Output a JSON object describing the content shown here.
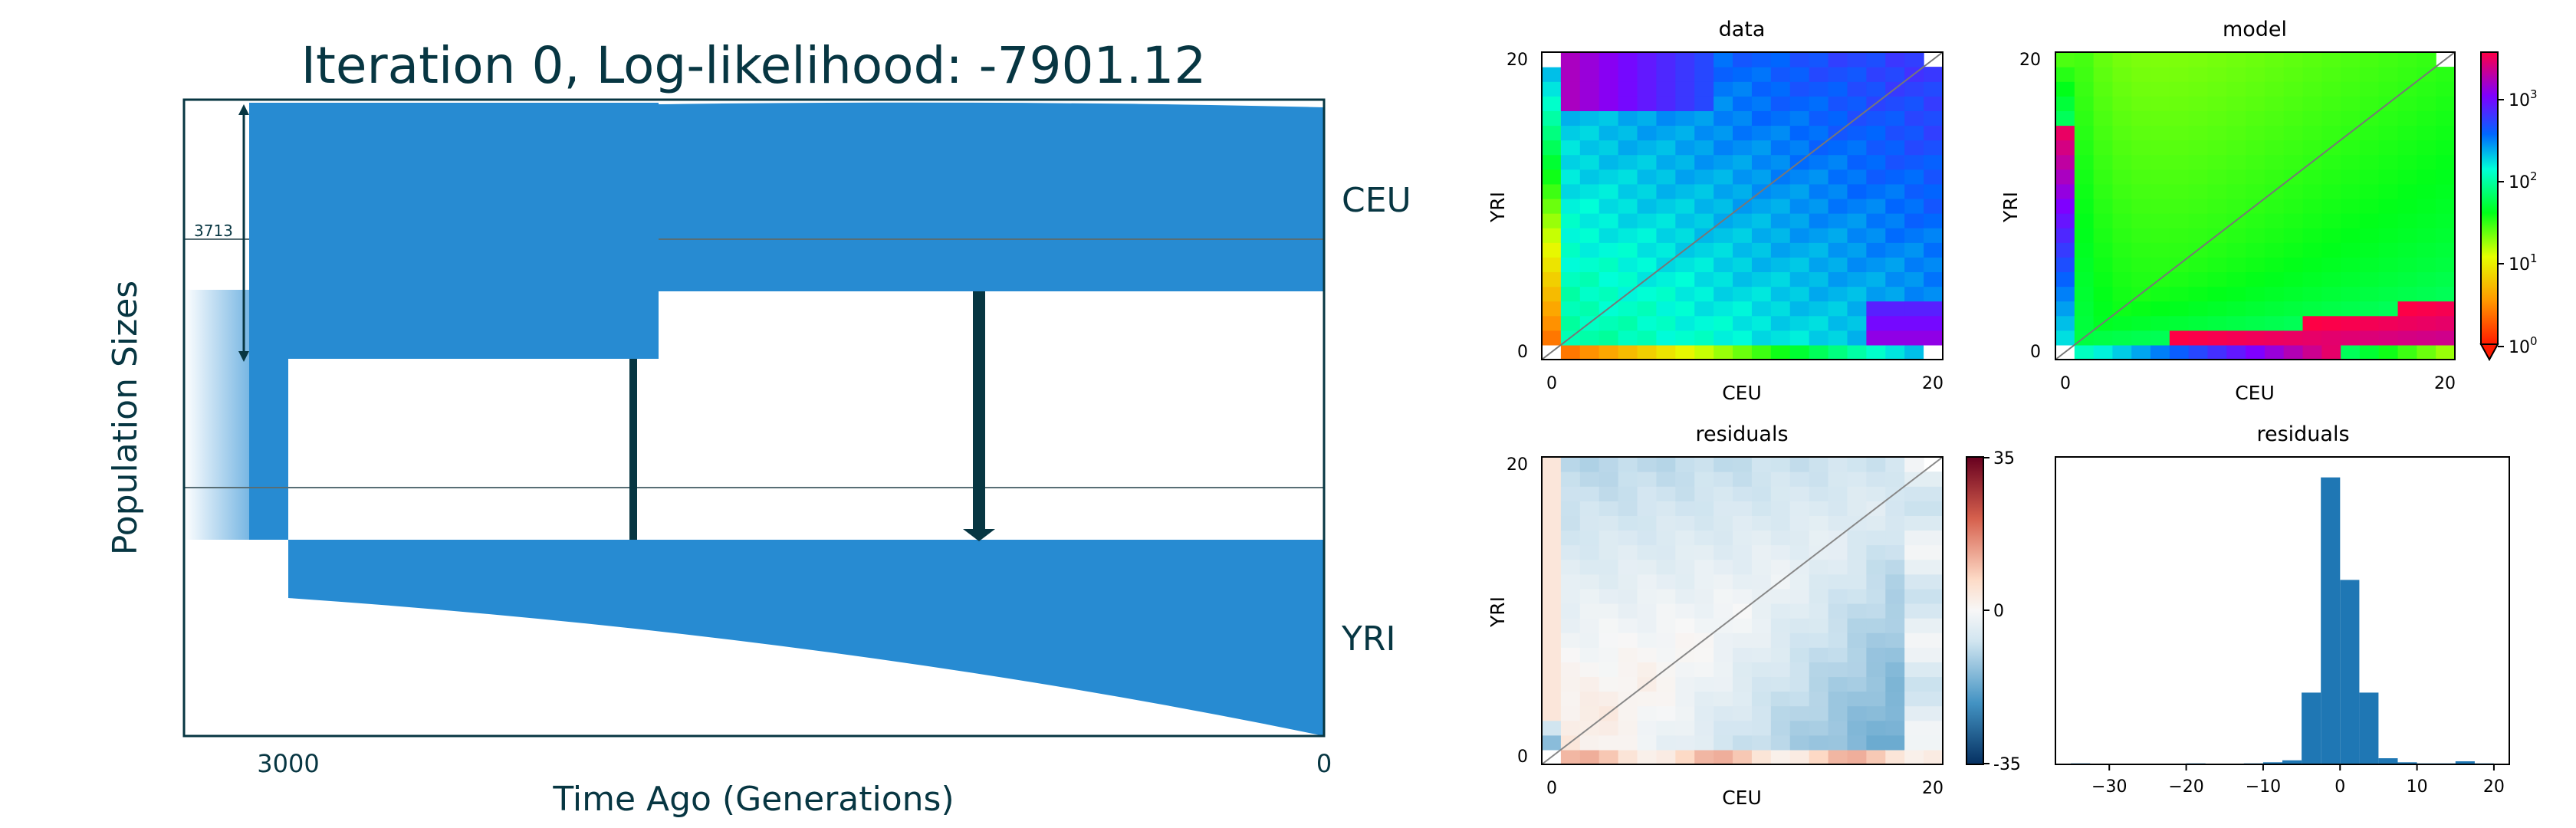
{
  "chart_data": [
    {
      "type": "demography",
      "title": "Iteration 0, Log-likelihood: -7901.12",
      "xlabel": "Time Ago (Generations)",
      "ylabel": "Population Sizes",
      "x_ticks": [
        "3000",
        "0"
      ],
      "populations": [
        "CEU",
        "YRI"
      ],
      "scale_bar_label": "3713",
      "colors": {
        "population": "#278bd2",
        "migration": "#073642",
        "frame": "#073642"
      }
    },
    {
      "type": "heatmap",
      "title": "data",
      "xlabel": "CEU",
      "ylabel": "YRI",
      "x_ticks": [
        "0",
        "20"
      ],
      "y_ticks": [
        "0",
        "20"
      ],
      "size": [
        21,
        21
      ],
      "colormap": "gist_rainbow",
      "scale": "log"
    },
    {
      "type": "heatmap",
      "title": "model",
      "xlabel": "CEU",
      "ylabel": "YRI",
      "x_ticks": [
        "0",
        "20"
      ],
      "y_ticks": [
        "0",
        "20"
      ],
      "size": [
        21,
        21
      ],
      "colormap": "gist_rainbow",
      "scale": "log",
      "colorbar_ticks": [
        "10",
        "10",
        "10",
        "10"
      ],
      "colorbar_exponents": [
        "0",
        "1",
        "2",
        "3"
      ]
    },
    {
      "type": "heatmap",
      "title": "residuals",
      "xlabel": "CEU",
      "ylabel": "YRI",
      "x_ticks": [
        "0",
        "20"
      ],
      "y_ticks": [
        "0",
        "20"
      ],
      "size": [
        21,
        21
      ],
      "colormap": "RdBu_r",
      "colorbar_ticks": [
        "35",
        "0",
        "-35"
      ]
    },
    {
      "type": "bar",
      "title": "residuals",
      "x_ticks": [
        "−30",
        "−20",
        "−10",
        "0",
        "10",
        "20"
      ],
      "xlim": [
        -37,
        22
      ],
      "ylim": [
        0,
        300
      ],
      "bin_width": 2.5,
      "bins": [
        {
          "x": -35,
          "count": 1
        },
        {
          "x": -20,
          "count": 1
        },
        {
          "x": -12.5,
          "count": 1
        },
        {
          "x": -10,
          "count": 2
        },
        {
          "x": -7.5,
          "count": 4
        },
        {
          "x": -5,
          "count": 70
        },
        {
          "x": -2.5,
          "count": 280
        },
        {
          "x": 0,
          "count": 180
        },
        {
          "x": 2.5,
          "count": 70
        },
        {
          "x": 5,
          "count": 6
        },
        {
          "x": 7.5,
          "count": 2
        },
        {
          "x": 10,
          "count": 1
        },
        {
          "x": 12.5,
          "count": 1
        },
        {
          "x": 15,
          "count": 3
        },
        {
          "x": 17.5,
          "count": 1
        }
      ]
    }
  ]
}
